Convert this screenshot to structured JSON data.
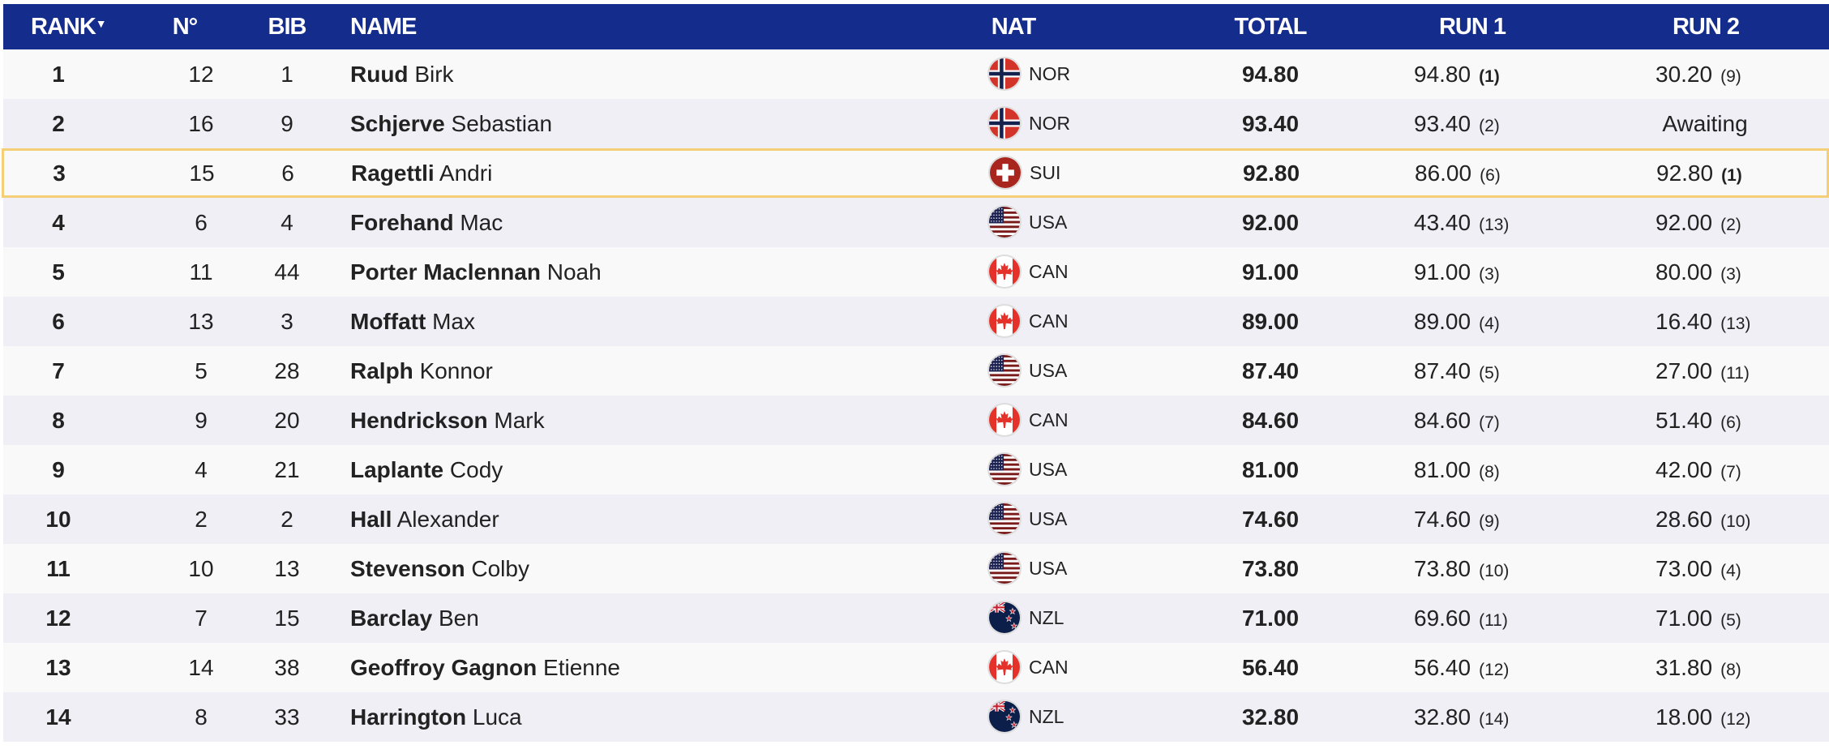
{
  "header": {
    "rank": "RANK",
    "sort_indicator": "▼",
    "no": "N°",
    "bib": "BIB",
    "name": "NAME",
    "nat": "NAT",
    "total": "TOTAL",
    "run1": "RUN 1",
    "run2": "RUN 2"
  },
  "colors": {
    "header_bg": "#142d8c",
    "highlight_border": "#f5cf78"
  },
  "highlighted_rank": "3",
  "rows": [
    {
      "rank": "1",
      "no": "12",
      "bib": "1",
      "last": "Ruud",
      "first": "Birk",
      "nat": "NOR",
      "flag": "flag-nor-icon",
      "total": "94.80",
      "run1": "94.80",
      "run1_rank": "(1)",
      "run2": "30.20",
      "run2_rank": "(9)"
    },
    {
      "rank": "2",
      "no": "16",
      "bib": "9",
      "last": "Schjerve",
      "first": "Sebastian",
      "nat": "NOR",
      "flag": "flag-nor-icon",
      "total": "93.40",
      "run1": "93.40",
      "run1_rank": "(2)",
      "run2": "Awaiting",
      "run2_rank": ""
    },
    {
      "rank": "3",
      "no": "15",
      "bib": "6",
      "last": "Ragettli",
      "first": "Andri",
      "nat": "SUI",
      "flag": "flag-sui-icon",
      "total": "92.80",
      "run1": "86.00",
      "run1_rank": "(6)",
      "run2": "92.80",
      "run2_rank": "(1)"
    },
    {
      "rank": "4",
      "no": "6",
      "bib": "4",
      "last": "Forehand",
      "first": "Mac",
      "nat": "USA",
      "flag": "flag-usa-icon",
      "total": "92.00",
      "run1": "43.40",
      "run1_rank": "(13)",
      "run2": "92.00",
      "run2_rank": "(2)"
    },
    {
      "rank": "5",
      "no": "11",
      "bib": "44",
      "last": "Porter Maclennan",
      "first": "Noah",
      "nat": "CAN",
      "flag": "flag-can-icon",
      "total": "91.00",
      "run1": "91.00",
      "run1_rank": "(3)",
      "run2": "80.00",
      "run2_rank": "(3)"
    },
    {
      "rank": "6",
      "no": "13",
      "bib": "3",
      "last": "Moffatt",
      "first": "Max",
      "nat": "CAN",
      "flag": "flag-can-icon",
      "total": "89.00",
      "run1": "89.00",
      "run1_rank": "(4)",
      "run2": "16.40",
      "run2_rank": "(13)"
    },
    {
      "rank": "7",
      "no": "5",
      "bib": "28",
      "last": "Ralph",
      "first": "Konnor",
      "nat": "USA",
      "flag": "flag-usa-icon",
      "total": "87.40",
      "run1": "87.40",
      "run1_rank": "(5)",
      "run2": "27.00",
      "run2_rank": "(11)"
    },
    {
      "rank": "8",
      "no": "9",
      "bib": "20",
      "last": "Hendrickson",
      "first": "Mark",
      "nat": "CAN",
      "flag": "flag-can-icon",
      "total": "84.60",
      "run1": "84.60",
      "run1_rank": "(7)",
      "run2": "51.40",
      "run2_rank": "(6)"
    },
    {
      "rank": "9",
      "no": "4",
      "bib": "21",
      "last": "Laplante",
      "first": "Cody",
      "nat": "USA",
      "flag": "flag-usa-icon",
      "total": "81.00",
      "run1": "81.00",
      "run1_rank": "(8)",
      "run2": "42.00",
      "run2_rank": "(7)"
    },
    {
      "rank": "10",
      "no": "2",
      "bib": "2",
      "last": "Hall",
      "first": "Alexander",
      "nat": "USA",
      "flag": "flag-usa-icon",
      "total": "74.60",
      "run1": "74.60",
      "run1_rank": "(9)",
      "run2": "28.60",
      "run2_rank": "(10)"
    },
    {
      "rank": "11",
      "no": "10",
      "bib": "13",
      "last": "Stevenson",
      "first": "Colby",
      "nat": "USA",
      "flag": "flag-usa-icon",
      "total": "73.80",
      "run1": "73.80",
      "run1_rank": "(10)",
      "run2": "73.00",
      "run2_rank": "(4)"
    },
    {
      "rank": "12",
      "no": "7",
      "bib": "15",
      "last": "Barclay",
      "first": "Ben",
      "nat": "NZL",
      "flag": "flag-nzl-icon",
      "total": "71.00",
      "run1": "69.60",
      "run1_rank": "(11)",
      "run2": "71.00",
      "run2_rank": "(5)"
    },
    {
      "rank": "13",
      "no": "14",
      "bib": "38",
      "last": "Geoffroy Gagnon",
      "first": "Etienne",
      "nat": "CAN",
      "flag": "flag-can-icon",
      "total": "56.40",
      "run1": "56.40",
      "run1_rank": "(12)",
      "run2": "31.80",
      "run2_rank": "(8)"
    },
    {
      "rank": "14",
      "no": "8",
      "bib": "33",
      "last": "Harrington",
      "first": "Luca",
      "nat": "NZL",
      "flag": "flag-nzl-icon",
      "total": "32.80",
      "run1": "32.80",
      "run1_rank": "(14)",
      "run2": "18.00",
      "run2_rank": "(12)"
    }
  ]
}
